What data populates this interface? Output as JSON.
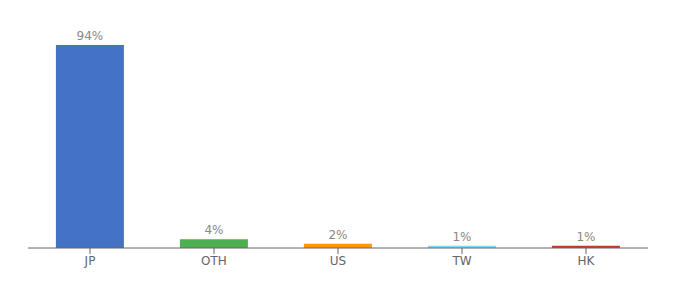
{
  "chart_data": {
    "type": "bar",
    "categories": [
      "JP",
      "OTH",
      "US",
      "TW",
      "HK"
    ],
    "values": [
      94,
      4,
      2,
      1,
      1
    ],
    "value_labels": [
      "94%",
      "4%",
      "2%",
      "1%",
      "1%"
    ],
    "data_labels": true,
    "colors": [
      "#4472c4",
      "#4caf50",
      "#ff9800",
      "#81d4fa",
      "#c0392b"
    ],
    "ylim": [
      0,
      100
    ],
    "tick_labels": "x",
    "grid": false
  }
}
